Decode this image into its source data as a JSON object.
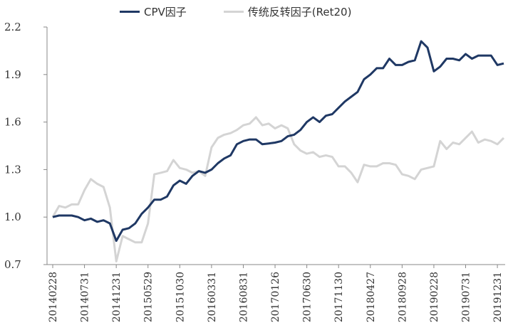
{
  "chart_data": {
    "type": "line",
    "title": "",
    "xlabel": "",
    "ylabel": "",
    "ylim": [
      0.7,
      2.2
    ],
    "yticks": [
      "0.7",
      "1.0",
      "1.3",
      "1.6",
      "1.9",
      "2.2"
    ],
    "grid": false,
    "legend_position": "top",
    "xtick_labels": [
      "20140228",
      "20140731",
      "20141231",
      "20150529",
      "20151030",
      "20160331",
      "20160831",
      "20170126",
      "20170630",
      "20171130",
      "20180427",
      "20180928",
      "20190228",
      "20190731",
      "20191231"
    ],
    "series": [
      {
        "name": "CPV因子",
        "color": "#1f3864",
        "values": [
          1.0,
          1.01,
          1.01,
          1.01,
          1.0,
          0.98,
          0.99,
          0.97,
          0.98,
          0.96,
          0.85,
          0.92,
          0.93,
          0.96,
          1.02,
          1.06,
          1.11,
          1.11,
          1.13,
          1.2,
          1.23,
          1.21,
          1.26,
          1.29,
          1.28,
          1.3,
          1.34,
          1.37,
          1.39,
          1.46,
          1.48,
          1.49,
          1.49,
          1.46,
          1.465,
          1.47,
          1.48,
          1.51,
          1.52,
          1.55,
          1.6,
          1.63,
          1.6,
          1.64,
          1.65,
          1.69,
          1.73,
          1.76,
          1.79,
          1.87,
          1.9,
          1.94,
          1.94,
          2.0,
          1.96,
          1.96,
          1.98,
          1.99,
          2.11,
          2.07,
          1.92,
          1.95,
          2.0,
          2.0,
          1.99,
          2.03,
          2.0,
          2.02,
          2.02,
          2.02,
          1.96,
          1.97
        ]
      },
      {
        "name": "传统反转因子(Ret20)",
        "color": "#d4d4d4",
        "values": [
          1.0,
          1.07,
          1.06,
          1.08,
          1.08,
          1.17,
          1.24,
          1.21,
          1.19,
          1.06,
          0.72,
          0.88,
          0.86,
          0.84,
          0.84,
          0.96,
          1.27,
          1.28,
          1.29,
          1.36,
          1.31,
          1.3,
          1.28,
          1.29,
          1.26,
          1.44,
          1.5,
          1.52,
          1.53,
          1.55,
          1.58,
          1.59,
          1.63,
          1.58,
          1.59,
          1.56,
          1.58,
          1.56,
          1.46,
          1.42,
          1.4,
          1.41,
          1.38,
          1.39,
          1.38,
          1.32,
          1.32,
          1.28,
          1.22,
          1.33,
          1.32,
          1.32,
          1.34,
          1.34,
          1.33,
          1.27,
          1.26,
          1.24,
          1.3,
          1.31,
          1.32,
          1.48,
          1.43,
          1.47,
          1.46,
          1.5,
          1.54,
          1.47,
          1.49,
          1.48,
          1.46,
          1.5
        ]
      }
    ]
  }
}
